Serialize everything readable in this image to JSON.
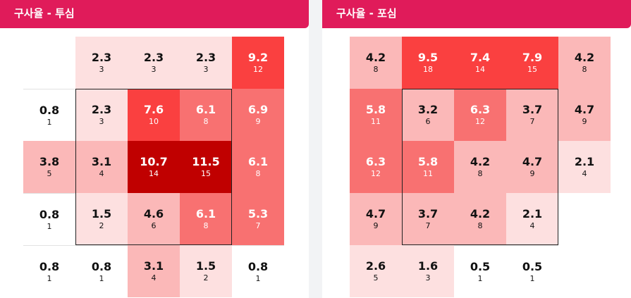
{
  "colors": {
    "header_bg": "#e01b5a",
    "scale": [
      "#ffffff",
      "#fde0e0",
      "#fbb8b8",
      "#f87171",
      "#fa4040",
      "#c00000"
    ]
  },
  "panels": [
    {
      "title": "구사율 - 투심"
    },
    {
      "title": "구사율 - 포심"
    }
  ],
  "chart_data": [
    {
      "type": "heatmap",
      "title": "구사율 - 투심",
      "rows": [
        [
          null,
          {
            "rate": "2.3",
            "count": "3"
          },
          {
            "rate": "2.3",
            "count": "3"
          },
          {
            "rate": "2.3",
            "count": "3"
          },
          {
            "rate": "9.2",
            "count": "12"
          }
        ],
        [
          {
            "rate": "0.8",
            "count": "1"
          },
          {
            "rate": "2.3",
            "count": "3"
          },
          {
            "rate": "7.6",
            "count": "10"
          },
          {
            "rate": "6.1",
            "count": "8"
          },
          {
            "rate": "6.9",
            "count": "9"
          }
        ],
        [
          {
            "rate": "3.8",
            "count": "5"
          },
          {
            "rate": "3.1",
            "count": "4"
          },
          {
            "rate": "10.7",
            "count": "14"
          },
          {
            "rate": "11.5",
            "count": "15"
          },
          {
            "rate": "6.1",
            "count": "8"
          }
        ],
        [
          {
            "rate": "0.8",
            "count": "1"
          },
          {
            "rate": "1.5",
            "count": "2"
          },
          {
            "rate": "4.6",
            "count": "6"
          },
          {
            "rate": "6.1",
            "count": "8"
          },
          {
            "rate": "5.3",
            "count": "7"
          }
        ],
        [
          {
            "rate": "0.8",
            "count": "1"
          },
          {
            "rate": "0.8",
            "count": "1"
          },
          {
            "rate": "3.1",
            "count": "4"
          },
          {
            "rate": "1.5",
            "count": "2"
          },
          {
            "rate": "0.8",
            "count": "1"
          }
        ]
      ],
      "strike_zone": {
        "rows": [
          1,
          3
        ],
        "cols": [
          1,
          3
        ]
      }
    },
    {
      "type": "heatmap",
      "title": "구사율 - 포심",
      "rows": [
        [
          {
            "rate": "4.2",
            "count": "8"
          },
          {
            "rate": "9.5",
            "count": "18"
          },
          {
            "rate": "7.4",
            "count": "14"
          },
          {
            "rate": "7.9",
            "count": "15"
          },
          {
            "rate": "4.2",
            "count": "8"
          }
        ],
        [
          {
            "rate": "5.8",
            "count": "11"
          },
          {
            "rate": "3.2",
            "count": "6"
          },
          {
            "rate": "6.3",
            "count": "12"
          },
          {
            "rate": "3.7",
            "count": "7"
          },
          {
            "rate": "4.7",
            "count": "9"
          }
        ],
        [
          {
            "rate": "6.3",
            "count": "12"
          },
          {
            "rate": "5.8",
            "count": "11"
          },
          {
            "rate": "4.2",
            "count": "8"
          },
          {
            "rate": "4.7",
            "count": "9"
          },
          {
            "rate": "2.1",
            "count": "4"
          }
        ],
        [
          {
            "rate": "4.7",
            "count": "9"
          },
          {
            "rate": "3.7",
            "count": "7"
          },
          {
            "rate": "4.2",
            "count": "8"
          },
          {
            "rate": "2.1",
            "count": "4"
          },
          null
        ],
        [
          {
            "rate": "2.6",
            "count": "5"
          },
          {
            "rate": "1.6",
            "count": "3"
          },
          {
            "rate": "0.5",
            "count": "1"
          },
          {
            "rate": "0.5",
            "count": "1"
          },
          null
        ]
      ],
      "strike_zone": {
        "rows": [
          1,
          3
        ],
        "cols": [
          1,
          3
        ]
      }
    }
  ]
}
